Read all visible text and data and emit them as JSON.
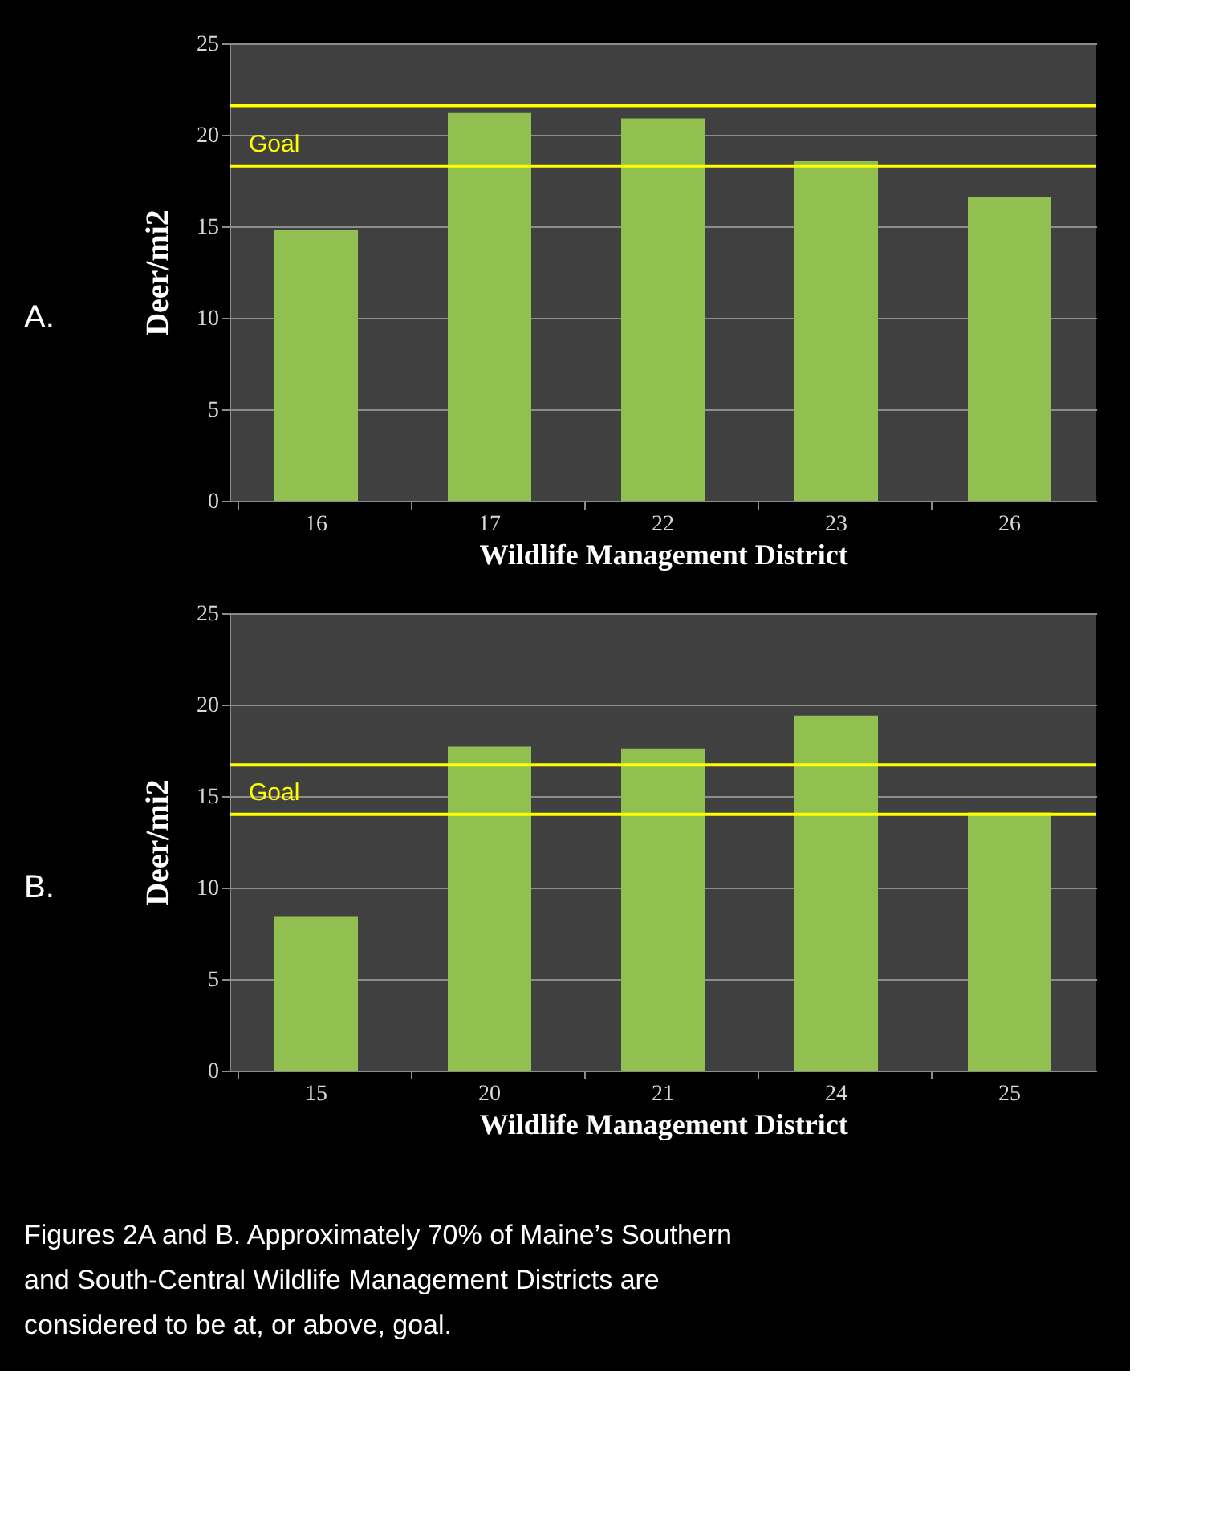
{
  "chart_data": [
    {
      "type": "bar",
      "categories": [
        "16",
        "17",
        "22",
        "23",
        "26"
      ],
      "values": [
        14.8,
        21.2,
        20.9,
        18.6,
        16.6
      ],
      "color": "#92c050",
      "xlabel": "Wildlife  Management District",
      "ylabel": "Deer/mi2",
      "ylim": [
        0,
        25
      ],
      "yticks": [
        0,
        5,
        10,
        15,
        20,
        25
      ],
      "grid": "y",
      "ref_lines": [
        {
          "axis": "y",
          "value": 21.6,
          "color": "#ffff00"
        },
        {
          "axis": "y",
          "value": 18.3,
          "label": "Goal",
          "color": "#ffff00"
        }
      ],
      "annotations": [
        "A."
      ]
    },
    {
      "type": "bar",
      "categories": [
        "15",
        "20",
        "21",
        "24",
        "25"
      ],
      "values": [
        8.4,
        17.7,
        17.6,
        19.4,
        14.1
      ],
      "color": "#92c050",
      "xlabel": "Wildlife  Management District",
      "ylabel": "Deer/mi2",
      "ylim": [
        0,
        25
      ],
      "yticks": [
        0,
        5,
        10,
        15,
        20,
        25
      ],
      "grid": "y",
      "ref_lines": [
        {
          "axis": "y",
          "value": 16.7,
          "color": "#ffff00"
        },
        {
          "axis": "y",
          "value": 14.0,
          "label": "Goal",
          "color": "#ffff00"
        }
      ],
      "annotations": [
        "B.",
        "Figures 2A and B. Approximately 70% of Maine’s Southern and South-Central Wildlife Management Districts are considered to be at, or above, goal."
      ]
    }
  ]
}
